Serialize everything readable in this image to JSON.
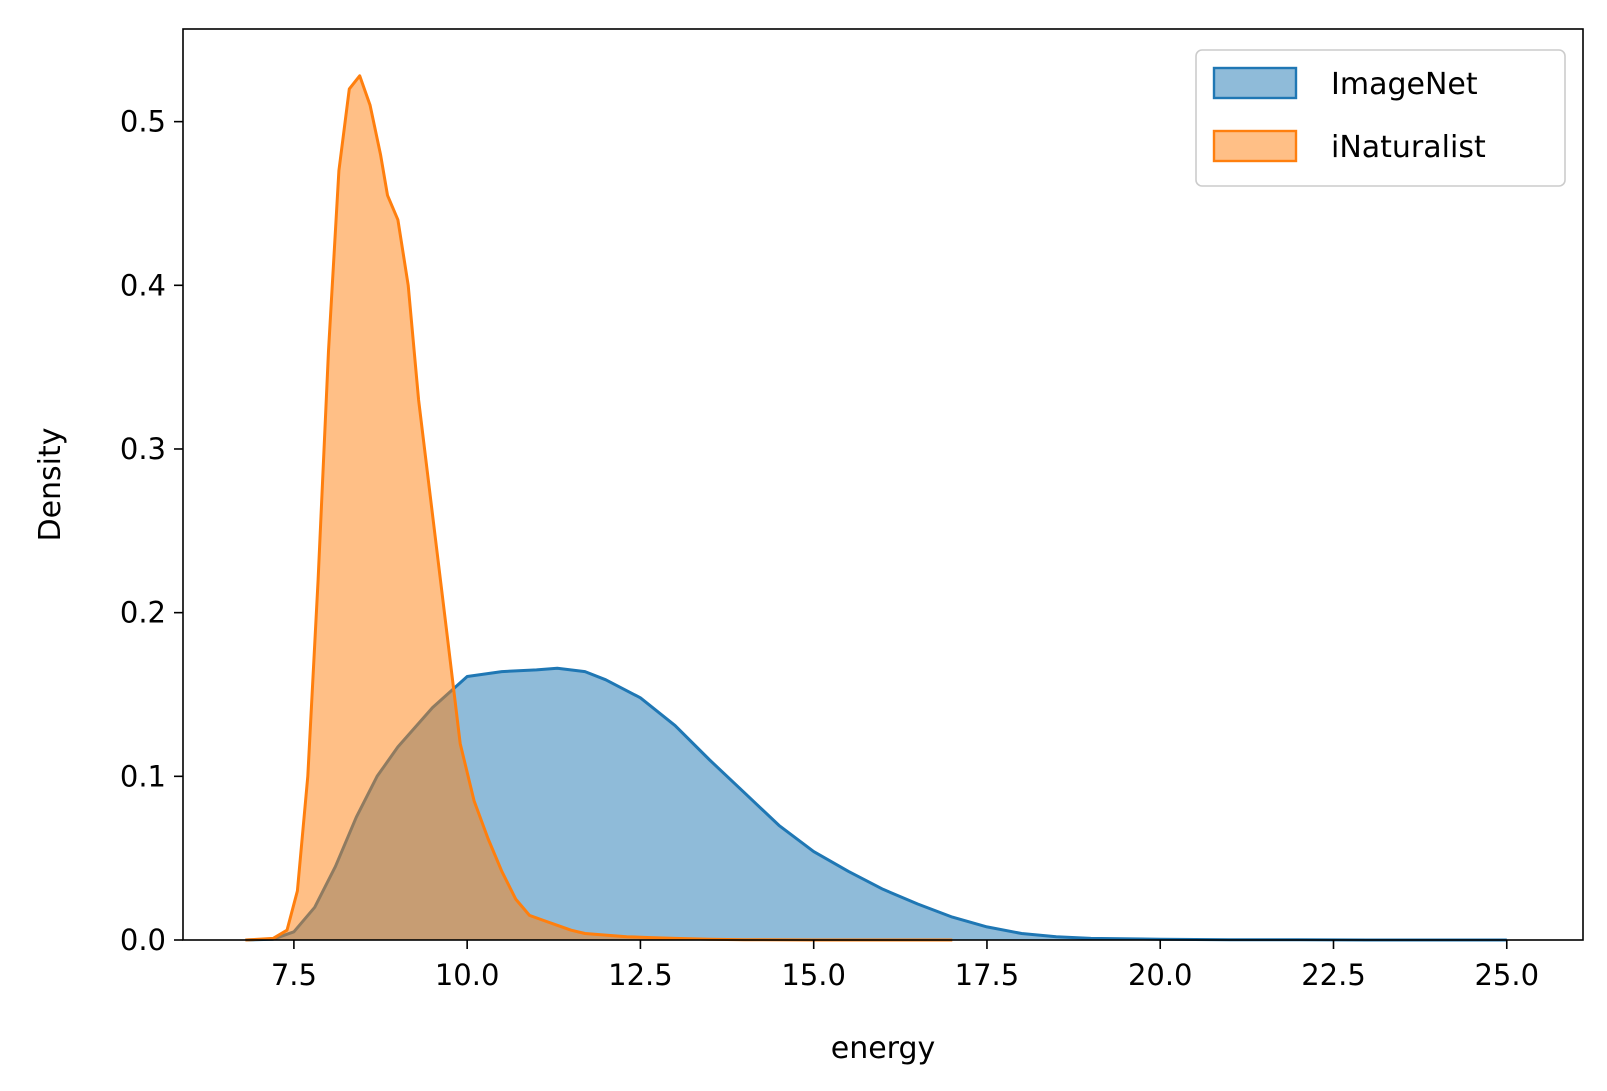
{
  "chart_data": {
    "type": "area",
    "title": "",
    "xlabel": "energy",
    "ylabel": "Density",
    "xlim": [
      5.9,
      26.1
    ],
    "ylim": [
      0,
      0.5566
    ],
    "xticks": [
      "7.5",
      "10.0",
      "12.5",
      "15.0",
      "17.5",
      "20.0",
      "22.5",
      "25.0"
    ],
    "yticks": [
      "0.0",
      "0.1",
      "0.2",
      "0.3",
      "0.4",
      "0.5"
    ],
    "grid": false,
    "legend_position": "top-right",
    "series": [
      {
        "name": "ImageNet",
        "color": "#1f77b4",
        "fill_opacity": 0.5,
        "x": [
          6.8,
          7.2,
          7.5,
          7.8,
          8.1,
          8.4,
          8.7,
          9.0,
          9.5,
          10.0,
          10.5,
          11.0,
          11.3,
          11.7,
          12.0,
          12.5,
          13.0,
          13.5,
          14.0,
          14.5,
          15.0,
          15.5,
          16.0,
          16.5,
          17.0,
          17.5,
          18.0,
          18.5,
          19.0,
          20.0,
          21.0,
          22.0,
          23.0,
          24.0,
          25.0
        ],
        "y": [
          0.0,
          0.0005,
          0.005,
          0.02,
          0.045,
          0.075,
          0.1,
          0.118,
          0.142,
          0.161,
          0.164,
          0.165,
          0.166,
          0.164,
          0.159,
          0.148,
          0.131,
          0.11,
          0.09,
          0.07,
          0.054,
          0.042,
          0.031,
          0.022,
          0.014,
          0.008,
          0.004,
          0.002,
          0.001,
          0.0005,
          0.0002,
          0.0001,
          0.0,
          0.0,
          0.0
        ]
      },
      {
        "name": "iNaturalist",
        "color": "#ff7f0e",
        "fill_opacity": 0.5,
        "x": [
          6.8,
          7.2,
          7.4,
          7.55,
          7.7,
          7.85,
          8.0,
          8.15,
          8.3,
          8.45,
          8.6,
          8.75,
          8.85,
          9.0,
          9.15,
          9.3,
          9.5,
          9.7,
          9.9,
          10.1,
          10.3,
          10.5,
          10.7,
          10.9,
          11.1,
          11.3,
          11.5,
          11.7,
          12.0,
          12.3,
          12.6,
          13.0,
          13.5,
          14.0,
          15.0,
          16.0,
          17.0
        ],
        "y": [
          0.0,
          0.001,
          0.006,
          0.03,
          0.1,
          0.22,
          0.36,
          0.47,
          0.52,
          0.528,
          0.51,
          0.48,
          0.455,
          0.44,
          0.4,
          0.33,
          0.26,
          0.19,
          0.12,
          0.085,
          0.062,
          0.042,
          0.025,
          0.015,
          0.012,
          0.009,
          0.006,
          0.004,
          0.003,
          0.002,
          0.0015,
          0.001,
          0.0005,
          0.0002,
          0.0,
          0.0,
          0.0
        ]
      }
    ]
  }
}
